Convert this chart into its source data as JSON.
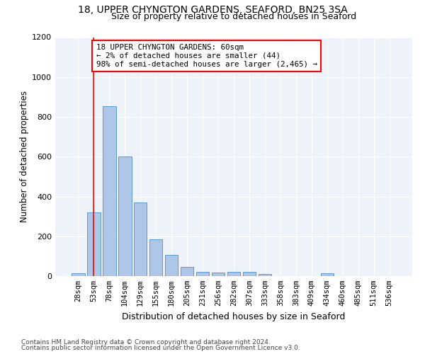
{
  "title1": "18, UPPER CHYNGTON GARDENS, SEAFORD, BN25 3SA",
  "title2": "Size of property relative to detached houses in Seaford",
  "xlabel": "Distribution of detached houses by size in Seaford",
  "ylabel": "Number of detached properties",
  "footer1": "Contains HM Land Registry data © Crown copyright and database right 2024.",
  "footer2": "Contains public sector information licensed under the Open Government Licence v3.0.",
  "annotation_line1": "18 UPPER CHYNGTON GARDENS: 60sqm",
  "annotation_line2": "← 2% of detached houses are smaller (44)",
  "annotation_line3": "98% of semi-detached houses are larger (2,465) →",
  "bar_labels": [
    "28sqm",
    "53sqm",
    "78sqm",
    "104sqm",
    "129sqm",
    "155sqm",
    "180sqm",
    "205sqm",
    "231sqm",
    "256sqm",
    "282sqm",
    "307sqm",
    "333sqm",
    "358sqm",
    "383sqm",
    "409sqm",
    "434sqm",
    "460sqm",
    "485sqm",
    "511sqm",
    "536sqm"
  ],
  "bar_values": [
    15,
    320,
    855,
    600,
    370,
    185,
    105,
    47,
    22,
    18,
    20,
    22,
    10,
    0,
    0,
    0,
    15,
    0,
    0,
    0,
    0
  ],
  "bar_color": "#aec6e8",
  "bar_edge_color": "#5b9bd5",
  "red_line_x": 1.0,
  "ylim": [
    0,
    1200
  ],
  "yticks": [
    0,
    200,
    400,
    600,
    800,
    1000,
    1200
  ],
  "plot_bg_color": "#eef2f9",
  "title1_fontsize": 10,
  "title2_fontsize": 9,
  "xlabel_fontsize": 9,
  "ylabel_fontsize": 8.5,
  "tick_fontsize": 8,
  "xtick_fontsize": 7.5,
  "footer_fontsize": 6.5,
  "annot_fontsize": 7.8
}
